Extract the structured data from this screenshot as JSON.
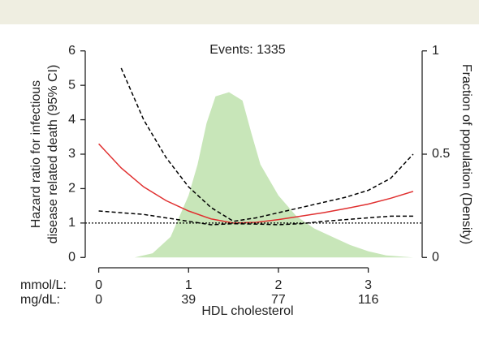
{
  "chart_data": {
    "type": "line",
    "annotation": "Events: 1335",
    "xlabel": "HDL cholesterol",
    "ylabel": [
      "Hazard ratio for infectious",
      "disease related death (95% CI)"
    ],
    "y2label": "Fraction of population (Density)",
    "x_unit_label": "mmol/L:",
    "secondary_x": {
      "name": "mg/dL:",
      "values": [
        0,
        39,
        77,
        116
      ]
    },
    "xlim": [
      -0.15,
      3.6
    ],
    "xticks": [
      0,
      1,
      2,
      3
    ],
    "ylim": [
      -0.3,
      6.3
    ],
    "yticks": [
      0,
      1,
      2,
      3,
      4,
      5,
      6
    ],
    "y2lim": [
      -0.05,
      1.05
    ],
    "y2ticks": [
      0,
      0.5,
      1
    ],
    "reference_line": 1,
    "x": [
      0,
      0.25,
      0.5,
      0.75,
      1,
      1.25,
      1.5,
      1.75,
      2,
      2.25,
      2.5,
      2.75,
      3,
      3.25,
      3.5
    ],
    "series": [
      {
        "style": "area",
        "axis": "y2",
        "color": "#c8e6b9",
        "x": [
          0.4,
          0.6,
          0.8,
          1,
          1.1,
          1.2,
          1.3,
          1.45,
          1.6,
          1.7,
          1.8,
          2,
          2.2,
          2.4,
          2.6,
          2.8,
          3,
          3.2,
          3.5
        ],
        "values": [
          0,
          0.02,
          0.1,
          0.3,
          0.45,
          0.65,
          0.78,
          0.8,
          0.76,
          0.6,
          0.45,
          0.3,
          0.2,
          0.14,
          0.1,
          0.06,
          0.03,
          0.01,
          0
        ]
      },
      {
        "style": "solid",
        "color": "#e03030",
        "values": [
          3.3,
          2.6,
          2.05,
          1.65,
          1.35,
          1.12,
          1.0,
          1.02,
          1.1,
          1.2,
          1.3,
          1.42,
          1.55,
          1.72,
          1.92
        ]
      },
      {
        "style": "dashed",
        "color": "#000000",
        "values": [
          null,
          5.5,
          4.0,
          2.9,
          2.05,
          1.45,
          1.05,
          1.15,
          1.3,
          1.45,
          1.6,
          1.75,
          1.95,
          2.3,
          3.0
        ]
      },
      {
        "style": "dashed",
        "color": "#000000",
        "values": [
          1.35,
          1.3,
          1.25,
          1.15,
          1.05,
          0.95,
          0.98,
          0.97,
          0.95,
          0.98,
          1.05,
          1.1,
          1.15,
          1.2,
          1.2
        ]
      }
    ]
  }
}
